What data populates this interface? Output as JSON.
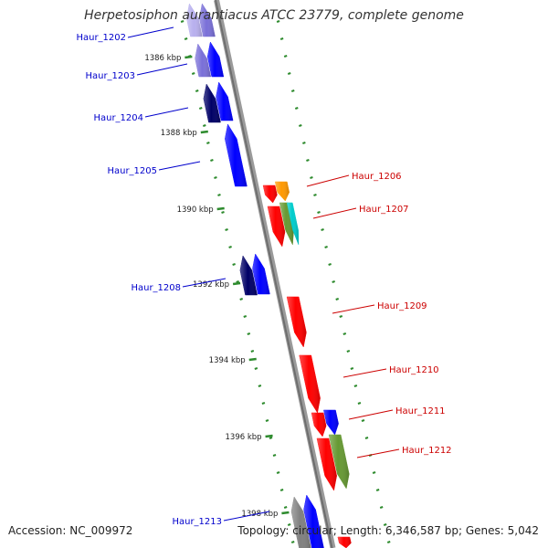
{
  "title": "Herpetosiphon aurantiacus ATCC 23779, complete genome",
  "footer": {
    "accession_label": "Accession:",
    "accession": "NC_009972",
    "topology_label": "Topology:",
    "topology": "circular",
    "length_label": "Length:",
    "length": "6,346,587 bp",
    "genes_label": "Genes:",
    "genes": "5,042"
  },
  "colors": {
    "backbone": "#808080",
    "tick": "#2e8b2e",
    "forward_label": "#0000cc",
    "reverse_label": "#cc0000",
    "dark_navy": "#000066",
    "blue": "#0000ff",
    "lavender": "#7a70d8",
    "pale_lavender": "#b8b0ee",
    "red": "#ff0000",
    "orange": "#ff9900",
    "cyan": "#00cccc",
    "olive": "#669933",
    "gray": "#808080"
  },
  "ticks": [
    "1386 kbp",
    "1388 kbp",
    "1390 kbp",
    "1392 kbp",
    "1394 kbp",
    "1396 kbp",
    "1398 kbp"
  ],
  "genes": {
    "forward": [
      {
        "name": "Haur_1202"
      },
      {
        "name": "Haur_1203"
      },
      {
        "name": "Haur_1204"
      },
      {
        "name": "Haur_1205"
      },
      {
        "name": "Haur_1208"
      },
      {
        "name": "Haur_1213"
      }
    ],
    "reverse": [
      {
        "name": "Haur_1206"
      },
      {
        "name": "Haur_1207"
      },
      {
        "name": "Haur_1209"
      },
      {
        "name": "Haur_1210"
      },
      {
        "name": "Haur_1211"
      },
      {
        "name": "Haur_1212"
      }
    ]
  }
}
